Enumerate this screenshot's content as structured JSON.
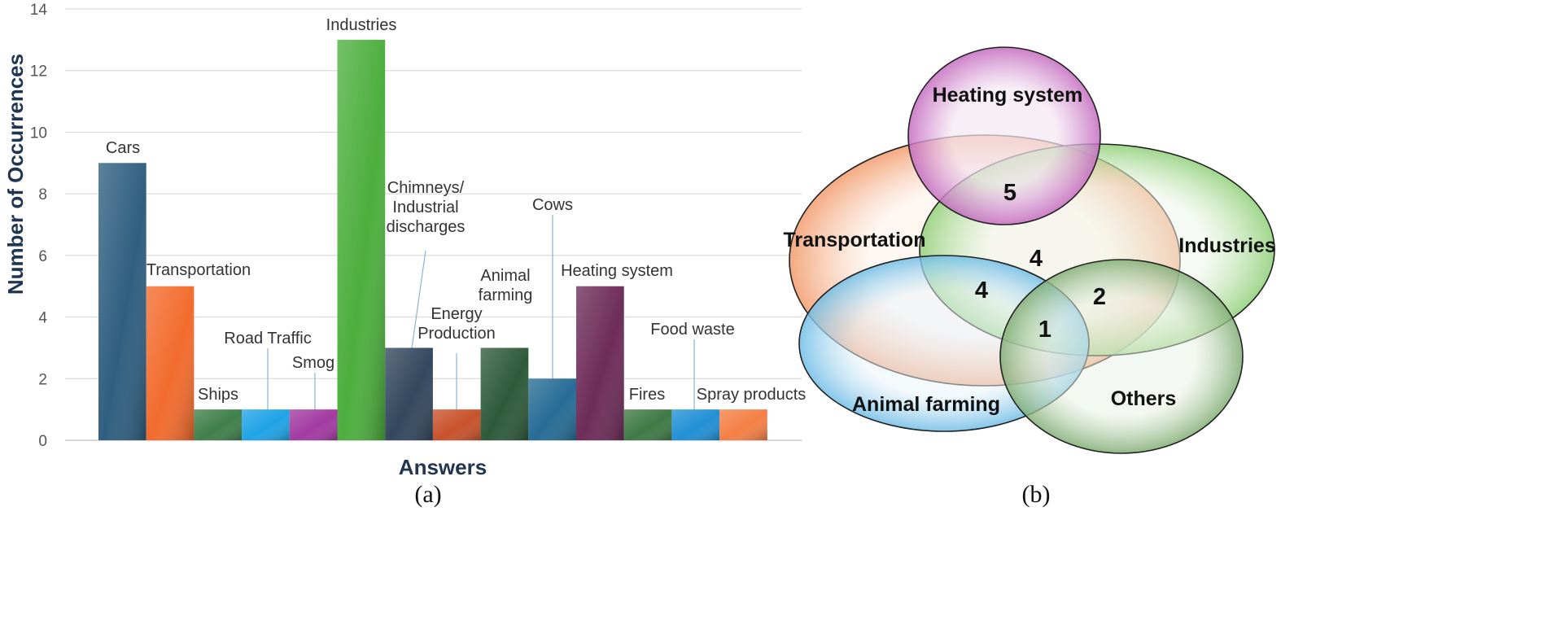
{
  "chart_data": [
    {
      "type": "bar",
      "panel_label": "(a)",
      "categories": [
        "Cars",
        "Transportation",
        "Ships",
        "Road Traffic",
        "Smog",
        "Industries",
        "Chimneys/ Industrial discharges",
        "Energy Production",
        "Animal farming",
        "Cows",
        "Heating system",
        "Fires",
        "Food waste",
        "Spray products"
      ],
      "values": [
        9,
        5,
        1,
        1,
        1,
        13,
        3,
        1,
        3,
        2,
        5,
        1,
        1,
        1
      ],
      "xlabel": "Answers",
      "ylabel": "Number of Occurrences",
      "ylim": [
        0,
        14
      ],
      "yticks": [
        "0",
        "2",
        "4",
        "6",
        "8",
        "10",
        "12",
        "14"
      ],
      "grid": true,
      "colors": [
        "#2f5f80",
        "#f26b2d",
        "#3f7f4a",
        "#1fa3e6",
        "#a33aa3",
        "#4cae3d",
        "#33475e",
        "#c8522b",
        "#2e5a3a",
        "#276c96",
        "#6e2c59",
        "#3f7a45",
        "#2190d6",
        "#f47f45"
      ]
    },
    {
      "type": "venn",
      "panel_label": "(b)",
      "sets": [
        "Heating system",
        "Transportation",
        "Industries",
        "Animal farming",
        "Others"
      ],
      "region_values": [
        "5",
        "4",
        "4",
        "2",
        "1"
      ]
    }
  ]
}
